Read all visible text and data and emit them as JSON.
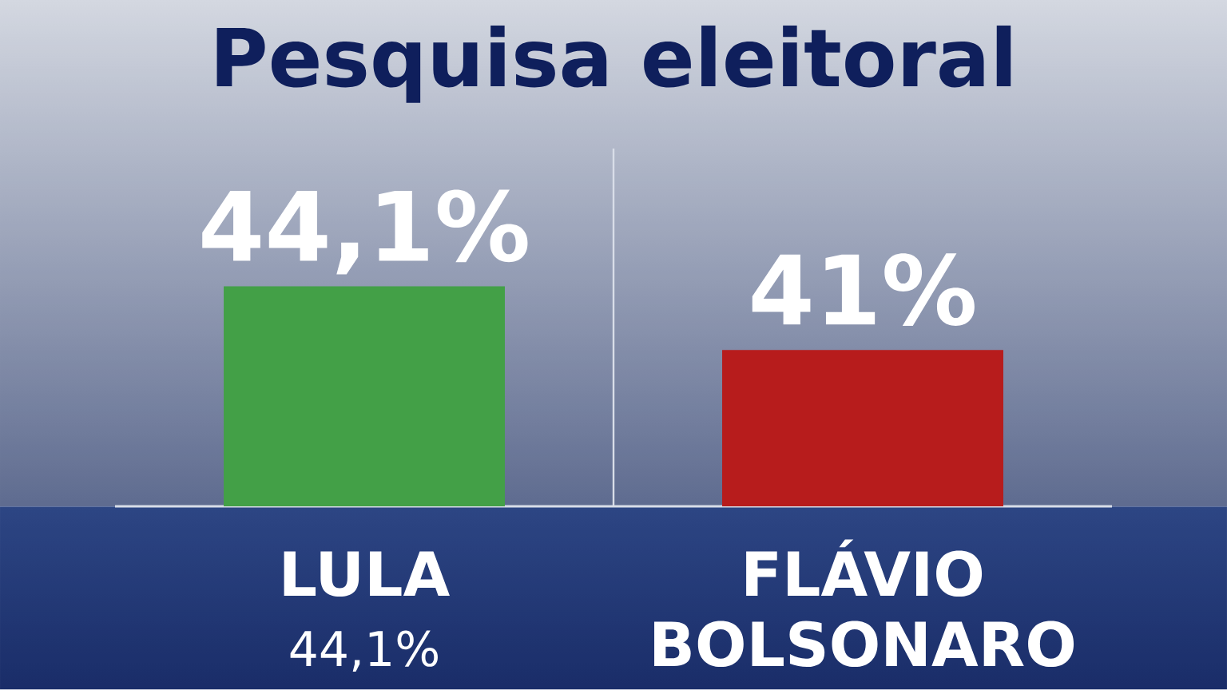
{
  "chart_data": {
    "type": "bar",
    "title": "Pesquisa eleitoral",
    "categories": [
      "LULA",
      "FLÁVIO BOLSONARO"
    ],
    "values": [
      44.1,
      41
    ],
    "colors": [
      "#43a047",
      "#b71c1c"
    ],
    "value_labels": [
      "44,1%",
      "41%"
    ],
    "ylim": [
      33.4,
      50.8
    ],
    "tick_labels": "x",
    "annotations": [
      "44,1%"
    ]
  }
}
